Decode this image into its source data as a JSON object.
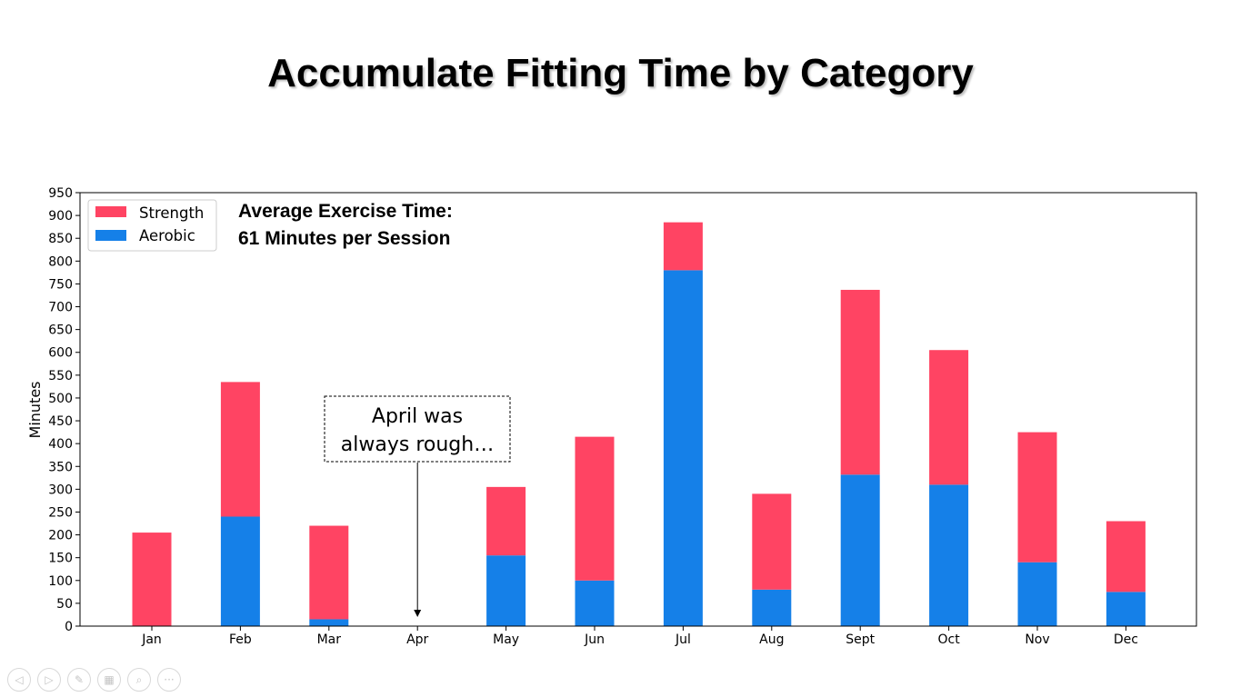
{
  "slide": {
    "title": "Accumulate Fitting Time by Category"
  },
  "chart_data": {
    "type": "bar",
    "stacked": true,
    "categories": [
      "Jan",
      "Feb",
      "Mar",
      "Apr",
      "May",
      "Jun",
      "Jul",
      "Aug",
      "Sept",
      "Oct",
      "Nov",
      "Dec"
    ],
    "series": [
      {
        "name": "Aerobic",
        "color": "#1580E8",
        "values": [
          0,
          240,
          15,
          0,
          155,
          100,
          780,
          80,
          332,
          310,
          140,
          75
        ]
      },
      {
        "name": "Strength",
        "color": "#FF4463",
        "values": [
          205,
          295,
          205,
          0,
          150,
          315,
          105,
          210,
          405,
          295,
          285,
          155
        ]
      }
    ],
    "legend_order": [
      "Strength",
      "Aerobic"
    ],
    "legend_position": "upper-left",
    "ylabel": "Minutes",
    "xlabel": "",
    "ylim": [
      0,
      950
    ],
    "yticks": [
      0,
      50,
      100,
      150,
      200,
      250,
      300,
      350,
      400,
      450,
      500,
      550,
      600,
      650,
      700,
      750,
      800,
      850,
      900,
      950
    ],
    "grid": false,
    "text_box": {
      "line1": "Average Exercise Time:",
      "line2": "61 Minutes per Session"
    },
    "annotation": {
      "line1": "April was",
      "line2": "always rough…",
      "target_category": "Apr",
      "target_value": 0
    }
  },
  "toolbar": {
    "buttons": [
      {
        "icon": "previous-icon",
        "glyph": "◁"
      },
      {
        "icon": "next-icon",
        "glyph": "▷"
      },
      {
        "icon": "pen-icon",
        "glyph": "✎"
      },
      {
        "icon": "slides-icon",
        "glyph": "▦"
      },
      {
        "icon": "zoom-icon",
        "glyph": "⌕"
      },
      {
        "icon": "more-icon",
        "glyph": "···"
      }
    ]
  }
}
